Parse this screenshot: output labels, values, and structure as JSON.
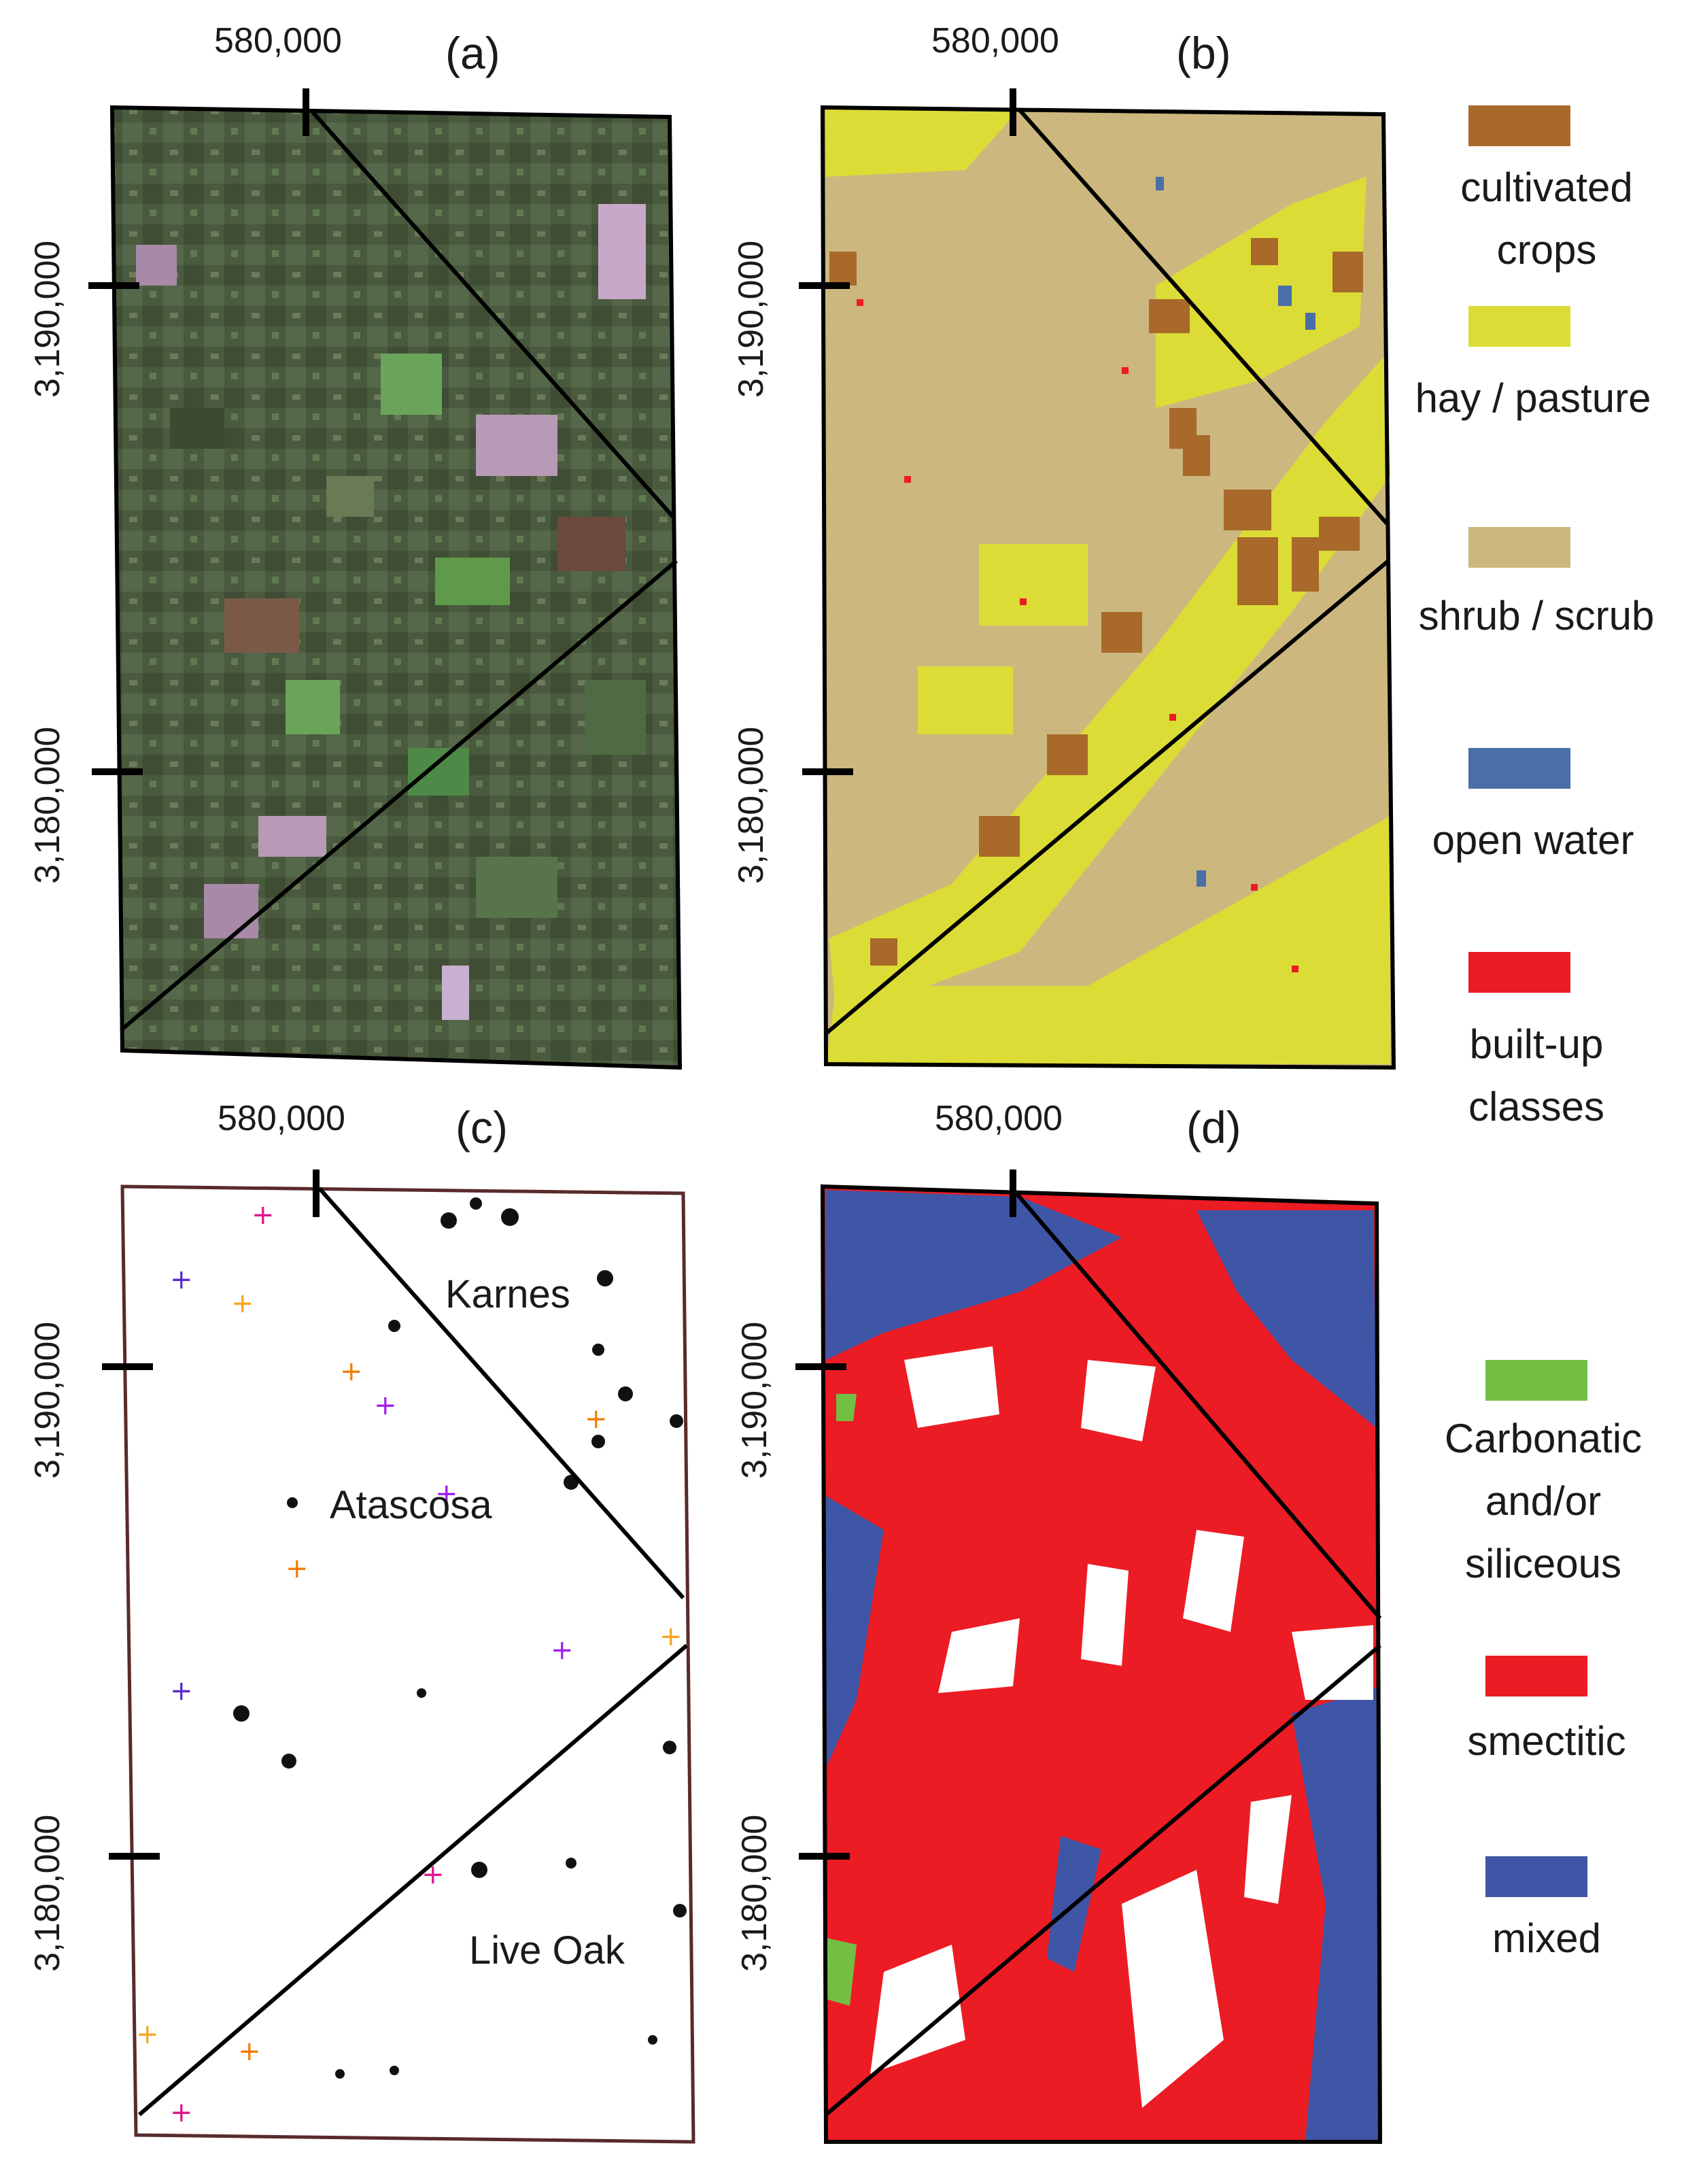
{
  "panels": [
    {
      "id": "a",
      "label": "(a)",
      "x_tick": "580,000",
      "y_ticks": [
        "3,190,000",
        "3,180,000"
      ]
    },
    {
      "id": "b",
      "label": "(b)",
      "x_tick": "580,000",
      "y_ticks": [
        "3,190,000",
        "3,180,000"
      ]
    },
    {
      "id": "c",
      "label": "(c)",
      "x_tick": "580,000",
      "y_ticks": [
        "3,190,000",
        "3,180,000"
      ],
      "counties": [
        "Karnes",
        "Atascosa",
        "Live Oak"
      ]
    },
    {
      "id": "d",
      "label": "(d)",
      "x_tick": "580,000",
      "y_ticks": [
        "3,190,000",
        "3,180,000"
      ]
    }
  ],
  "legend_landcover": [
    {
      "label": "cultivated crops",
      "color": "#a8692a"
    },
    {
      "label": "hay / pasture",
      "color": "#dcdc36"
    },
    {
      "label": "shrub / scrub",
      "color": "#ccb87e"
    },
    {
      "label": "open water",
      "color": "#4a6ea8"
    },
    {
      "label": "built-up classes",
      "color": "#ec1c24"
    }
  ],
  "legend_soil": [
    {
      "label": "Carbonatic and/or siliceous",
      "color": "#72bf44"
    },
    {
      "label": "smectitic",
      "color": "#ec1c24"
    },
    {
      "label": "mixed",
      "color": "#3f55a5"
    }
  ]
}
